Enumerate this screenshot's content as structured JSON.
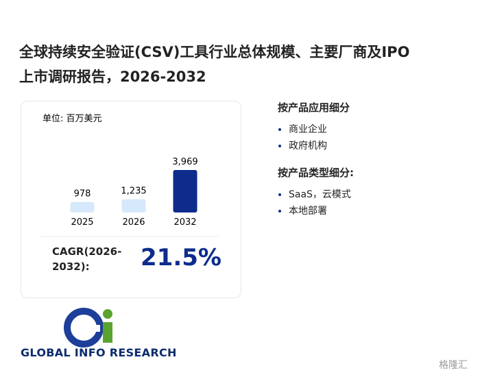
{
  "title_lines": [
    "全球持续安全验证(CSV)工具行业总体规模、主要厂商及IPO",
    "上市调研报告，2026-2032"
  ],
  "chart_data": {
    "type": "bar",
    "unit_label": "单位: 百万美元",
    "categories": [
      "2025",
      "2026",
      "2032"
    ],
    "values": [
      978,
      1235,
      3969
    ],
    "value_labels": [
      "978",
      "1,235",
      "3,969"
    ],
    "colors": [
      "#d6e8fb",
      "#d6e8fb",
      "#0d2c8c"
    ]
  },
  "cagr": {
    "label": "CAGR(2026-2032):",
    "value": "21.5%"
  },
  "segments": [
    {
      "heading": "按产品应用细分",
      "items": [
        "商业企业",
        "政府机构"
      ]
    },
    {
      "heading": "按产品类型细分:",
      "items": [
        "SaaS，云模式",
        "本地部署"
      ]
    }
  ],
  "logo": {
    "text": "GLOBAL INFO RESEARCH"
  },
  "corner_mark": "格隆汇"
}
